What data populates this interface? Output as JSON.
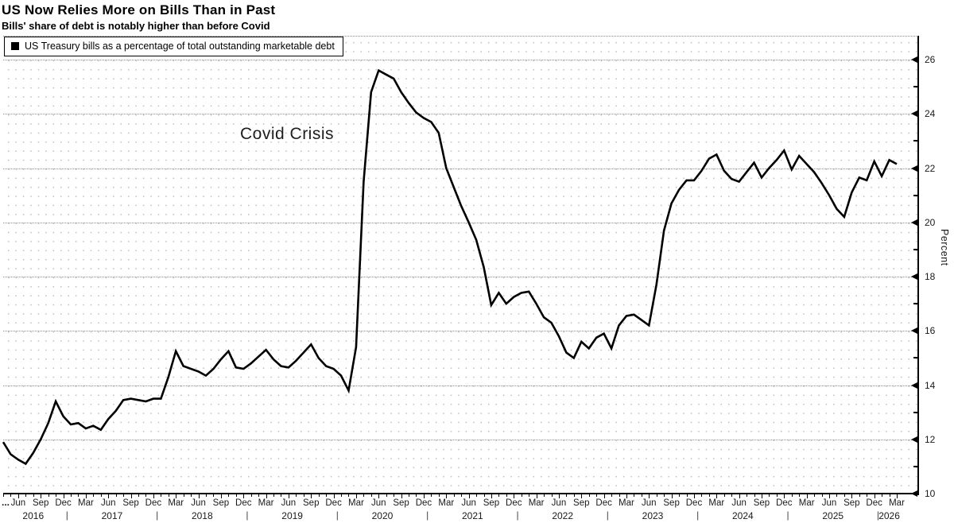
{
  "header": {
    "title": "US Now Relies More on Bills Than in Past",
    "subtitle": "Bills' share of debt is notably higher than before Covid"
  },
  "chart_data": {
    "type": "line",
    "title": "US Now Relies More on Bills Than in Past",
    "subtitle": "Bills' share of debt is notably higher than before Covid",
    "legend": "US Treasury bills as a percentage of total outstanding marketable debt",
    "annotation": {
      "text": "Covid Crisis"
    },
    "ylabel": "Percent",
    "ylim": [
      10,
      26
    ],
    "ytick_interval": 2,
    "ytick_minor_interval": 1,
    "grid": "dotted",
    "legend_position": "top-left",
    "line_color": "#000000",
    "frequency": "monthly",
    "x_start": "2016-04",
    "x_end": "2026-03",
    "x_overflow_label": "...",
    "quarter_month_labels": {
      "3": "Mar",
      "6": "Jun",
      "9": "Sep",
      "12": "Dec"
    },
    "values": [
      11.9,
      11.45,
      11.25,
      11.1,
      11.5,
      12.0,
      12.6,
      13.4,
      12.85,
      12.55,
      12.6,
      12.4,
      12.5,
      12.35,
      12.75,
      13.05,
      13.45,
      13.5,
      13.45,
      13.4,
      13.5,
      13.5,
      14.3,
      15.25,
      14.7,
      14.6,
      14.5,
      14.35,
      14.6,
      14.95,
      15.25,
      14.65,
      14.6,
      14.8,
      15.05,
      15.3,
      14.95,
      14.7,
      14.65,
      14.9,
      15.2,
      15.5,
      15.0,
      14.7,
      14.6,
      14.35,
      13.8,
      15.4,
      21.5,
      24.8,
      25.6,
      25.45,
      25.3,
      24.8,
      24.4,
      24.05,
      23.85,
      23.7,
      23.3,
      22.0,
      21.3,
      20.6,
      20.0,
      19.35,
      18.35,
      16.95,
      17.4,
      17.0,
      17.25,
      17.4,
      17.45,
      17.0,
      16.5,
      16.3,
      15.8,
      15.2,
      15.0,
      15.6,
      15.35,
      15.75,
      15.9,
      15.35,
      16.2,
      16.55,
      16.6,
      16.4,
      16.2,
      17.7,
      19.7,
      20.7,
      21.2,
      21.55,
      21.55,
      21.9,
      22.35,
      22.5,
      21.9,
      21.6,
      21.5,
      21.85,
      22.2,
      21.65,
      22.0,
      22.3,
      22.65,
      21.95,
      22.45,
      22.15,
      21.85,
      21.45,
      21.0,
      20.5,
      20.2,
      21.1,
      21.65,
      21.55,
      22.25,
      21.7,
      22.3,
      22.15
    ]
  }
}
